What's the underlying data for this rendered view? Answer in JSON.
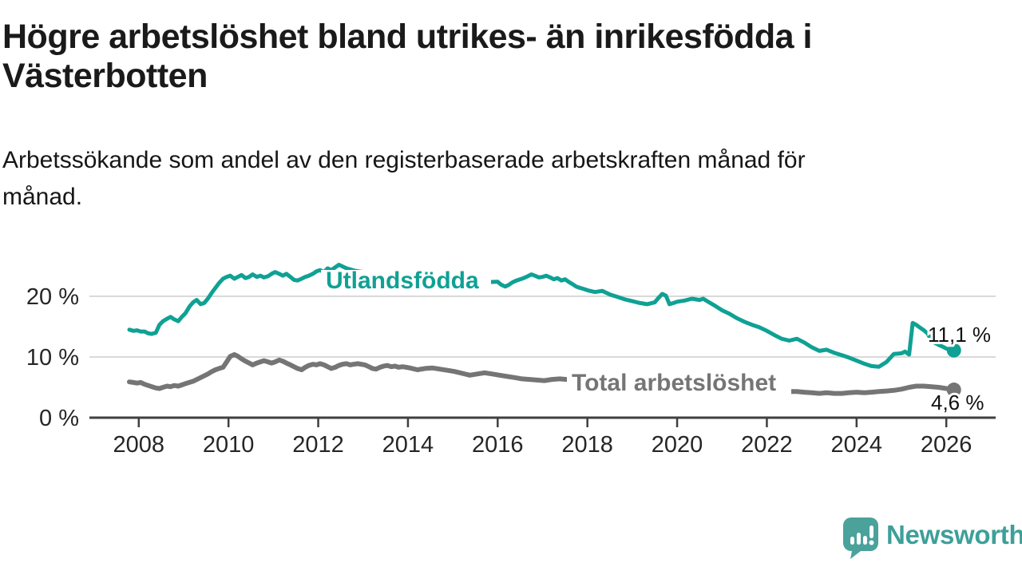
{
  "header": {
    "title_lines": [
      "Högre arbetslöshet bland utrikes- än inrikesfödda i",
      "Västerbotten"
    ],
    "subtitle_lines": [
      "Arbetssökande som andel av den registerbaserade arbetskraften månad för",
      "månad."
    ]
  },
  "footer": {
    "brand_name": "Newsworthy",
    "brand_color": "#3e9f99",
    "logo_icon": "bar-chart-speech-bubble-icon",
    "logo_icon_color": "#4aa29b"
  },
  "chart_data": {
    "type": "line",
    "title": "",
    "xlabel": "",
    "ylabel": "",
    "grid": "horizontal",
    "grid_color": "#d9d9d9",
    "axis_color": "#3f3f3f",
    "tick_text_color": "#262626",
    "annotation_text_color": "#111111",
    "xlim": [
      2006.9,
      2027.1
    ],
    "ylim": [
      0,
      26
    ],
    "x_ticks": [
      2008,
      2010,
      2012,
      2014,
      2016,
      2018,
      2020,
      2022,
      2024,
      2026
    ],
    "y_ticks": [
      {
        "value": 0,
        "label": "0 %"
      },
      {
        "value": 10,
        "label": "10 %"
      },
      {
        "value": 20,
        "label": "20 %"
      }
    ],
    "series": [
      {
        "name": "Utlandsfödda",
        "color": "#0fa194",
        "end_value_label": "11,1 %",
        "end_value": 11.1,
        "points": [
          [
            2007.79,
            14.5
          ],
          [
            2007.88,
            14.3
          ],
          [
            2007.96,
            14.4
          ],
          [
            2008.04,
            14.2
          ],
          [
            2008.13,
            14.2
          ],
          [
            2008.21,
            13.9
          ],
          [
            2008.29,
            13.8
          ],
          [
            2008.38,
            14.0
          ],
          [
            2008.46,
            15.3
          ],
          [
            2008.54,
            15.9
          ],
          [
            2008.63,
            16.3
          ],
          [
            2008.71,
            16.6
          ],
          [
            2008.79,
            16.2
          ],
          [
            2008.88,
            15.9
          ],
          [
            2008.96,
            16.6
          ],
          [
            2009.04,
            17.2
          ],
          [
            2009.13,
            18.3
          ],
          [
            2009.21,
            19.0
          ],
          [
            2009.29,
            19.4
          ],
          [
            2009.38,
            18.7
          ],
          [
            2009.46,
            18.9
          ],
          [
            2009.54,
            19.6
          ],
          [
            2009.63,
            20.6
          ],
          [
            2009.71,
            21.4
          ],
          [
            2009.79,
            22.2
          ],
          [
            2009.88,
            22.9
          ],
          [
            2009.96,
            23.2
          ],
          [
            2010.04,
            23.4
          ],
          [
            2010.13,
            22.9
          ],
          [
            2010.21,
            23.2
          ],
          [
            2010.29,
            23.5
          ],
          [
            2010.38,
            23.0
          ],
          [
            2010.46,
            23.2
          ],
          [
            2010.54,
            23.6
          ],
          [
            2010.63,
            23.2
          ],
          [
            2010.71,
            23.4
          ],
          [
            2010.79,
            23.1
          ],
          [
            2010.88,
            23.3
          ],
          [
            2010.96,
            23.7
          ],
          [
            2011.04,
            24.0
          ],
          [
            2011.13,
            23.7
          ],
          [
            2011.21,
            23.4
          ],
          [
            2011.29,
            23.7
          ],
          [
            2011.38,
            23.2
          ],
          [
            2011.46,
            22.7
          ],
          [
            2011.54,
            22.6
          ],
          [
            2011.63,
            22.9
          ],
          [
            2011.71,
            23.2
          ],
          [
            2011.79,
            23.4
          ],
          [
            2011.88,
            23.7
          ],
          [
            2011.96,
            24.1
          ],
          [
            2012.04,
            24.3
          ],
          [
            2012.13,
            24.0
          ],
          [
            2012.21,
            24.6
          ],
          [
            2012.29,
            24.3
          ],
          [
            2012.46,
            25.2
          ],
          [
            2012.63,
            24.6
          ],
          [
            2012.83,
            24.2
          ],
          [
            2013.0,
            24.0
          ],
          [
            2013.25,
            23.8
          ],
          [
            2013.5,
            23.6
          ],
          [
            2013.75,
            23.4
          ],
          [
            2014.0,
            23.2
          ],
          [
            2014.33,
            23.0
          ],
          [
            2014.67,
            22.8
          ],
          [
            2015.0,
            22.6
          ],
          [
            2015.33,
            22.4
          ],
          [
            2015.67,
            22.3
          ],
          [
            2016.0,
            22.4
          ],
          [
            2016.08,
            21.9
          ],
          [
            2016.17,
            21.6
          ],
          [
            2016.25,
            21.9
          ],
          [
            2016.33,
            22.3
          ],
          [
            2016.42,
            22.6
          ],
          [
            2016.5,
            22.8
          ],
          [
            2016.58,
            23.0
          ],
          [
            2016.67,
            23.3
          ],
          [
            2016.75,
            23.6
          ],
          [
            2016.83,
            23.4
          ],
          [
            2016.92,
            23.1
          ],
          [
            2017.0,
            23.2
          ],
          [
            2017.08,
            23.4
          ],
          [
            2017.17,
            23.1
          ],
          [
            2017.25,
            22.8
          ],
          [
            2017.33,
            23.0
          ],
          [
            2017.42,
            22.6
          ],
          [
            2017.5,
            22.8
          ],
          [
            2017.58,
            22.4
          ],
          [
            2017.67,
            22.0
          ],
          [
            2017.75,
            21.6
          ],
          [
            2017.83,
            21.4
          ],
          [
            2017.92,
            21.2
          ],
          [
            2018.0,
            21.0
          ],
          [
            2018.17,
            20.7
          ],
          [
            2018.33,
            20.9
          ],
          [
            2018.5,
            20.3
          ],
          [
            2018.67,
            19.9
          ],
          [
            2018.83,
            19.5
          ],
          [
            2019.0,
            19.2
          ],
          [
            2019.17,
            18.9
          ],
          [
            2019.33,
            18.7
          ],
          [
            2019.5,
            19.0
          ],
          [
            2019.58,
            19.7
          ],
          [
            2019.67,
            20.4
          ],
          [
            2019.75,
            20.1
          ],
          [
            2019.83,
            18.7
          ],
          [
            2019.92,
            18.9
          ],
          [
            2020.0,
            19.1
          ],
          [
            2020.17,
            19.3
          ],
          [
            2020.33,
            19.6
          ],
          [
            2020.5,
            19.4
          ],
          [
            2020.58,
            19.6
          ],
          [
            2020.67,
            19.2
          ],
          [
            2020.83,
            18.5
          ],
          [
            2021.0,
            17.7
          ],
          [
            2021.17,
            17.1
          ],
          [
            2021.33,
            16.4
          ],
          [
            2021.5,
            15.8
          ],
          [
            2021.67,
            15.3
          ],
          [
            2021.83,
            14.9
          ],
          [
            2022.0,
            14.3
          ],
          [
            2022.17,
            13.6
          ],
          [
            2022.33,
            13.0
          ],
          [
            2022.5,
            12.7
          ],
          [
            2022.67,
            13.0
          ],
          [
            2022.83,
            12.4
          ],
          [
            2023.0,
            11.6
          ],
          [
            2023.17,
            11.0
          ],
          [
            2023.33,
            11.2
          ],
          [
            2023.5,
            10.7
          ],
          [
            2023.67,
            10.3
          ],
          [
            2023.83,
            9.9
          ],
          [
            2024.0,
            9.4
          ],
          [
            2024.17,
            8.9
          ],
          [
            2024.33,
            8.5
          ],
          [
            2024.5,
            8.4
          ],
          [
            2024.67,
            9.2
          ],
          [
            2024.83,
            10.5
          ],
          [
            2025.0,
            10.6
          ],
          [
            2025.08,
            10.9
          ],
          [
            2025.17,
            10.4
          ],
          [
            2025.25,
            15.6
          ],
          [
            2025.33,
            15.3
          ],
          [
            2025.42,
            14.8
          ],
          [
            2025.5,
            14.4
          ],
          [
            2025.58,
            13.9
          ],
          [
            2025.67,
            12.7
          ],
          [
            2025.75,
            12.3
          ],
          [
            2025.83,
            12.0
          ],
          [
            2025.92,
            11.7
          ],
          [
            2026.0,
            11.4
          ],
          [
            2026.08,
            11.2
          ],
          [
            2026.17,
            11.1
          ]
        ]
      },
      {
        "name": "Total arbetslöshet",
        "color": "#757575",
        "end_value_label": "4,6 %",
        "end_value": 4.6,
        "points": [
          [
            2007.79,
            5.9
          ],
          [
            2007.88,
            5.8
          ],
          [
            2007.96,
            5.7
          ],
          [
            2008.04,
            5.8
          ],
          [
            2008.13,
            5.5
          ],
          [
            2008.21,
            5.3
          ],
          [
            2008.29,
            5.1
          ],
          [
            2008.38,
            4.9
          ],
          [
            2008.46,
            4.8
          ],
          [
            2008.54,
            5.0
          ],
          [
            2008.63,
            5.2
          ],
          [
            2008.71,
            5.1
          ],
          [
            2008.79,
            5.3
          ],
          [
            2008.88,
            5.2
          ],
          [
            2008.96,
            5.4
          ],
          [
            2009.04,
            5.6
          ],
          [
            2009.21,
            6.0
          ],
          [
            2009.38,
            6.6
          ],
          [
            2009.54,
            7.2
          ],
          [
            2009.63,
            7.6
          ],
          [
            2009.71,
            7.9
          ],
          [
            2009.79,
            8.1
          ],
          [
            2009.88,
            8.3
          ],
          [
            2009.96,
            9.2
          ],
          [
            2010.04,
            10.1
          ],
          [
            2010.13,
            10.4
          ],
          [
            2010.21,
            10.1
          ],
          [
            2010.29,
            9.7
          ],
          [
            2010.38,
            9.3
          ],
          [
            2010.46,
            9.0
          ],
          [
            2010.54,
            8.7
          ],
          [
            2010.63,
            9.0
          ],
          [
            2010.71,
            9.2
          ],
          [
            2010.79,
            9.4
          ],
          [
            2010.88,
            9.2
          ],
          [
            2010.96,
            9.0
          ],
          [
            2011.04,
            9.2
          ],
          [
            2011.13,
            9.5
          ],
          [
            2011.21,
            9.3
          ],
          [
            2011.29,
            9.0
          ],
          [
            2011.38,
            8.7
          ],
          [
            2011.46,
            8.4
          ],
          [
            2011.54,
            8.1
          ],
          [
            2011.63,
            7.9
          ],
          [
            2011.71,
            8.3
          ],
          [
            2011.79,
            8.6
          ],
          [
            2011.88,
            8.8
          ],
          [
            2011.96,
            8.7
          ],
          [
            2012.04,
            8.9
          ],
          [
            2012.13,
            8.7
          ],
          [
            2012.21,
            8.4
          ],
          [
            2012.29,
            8.1
          ],
          [
            2012.38,
            8.3
          ],
          [
            2012.46,
            8.6
          ],
          [
            2012.54,
            8.8
          ],
          [
            2012.63,
            8.9
          ],
          [
            2012.71,
            8.7
          ],
          [
            2012.79,
            8.8
          ],
          [
            2012.88,
            8.9
          ],
          [
            2012.96,
            8.8
          ],
          [
            2013.04,
            8.7
          ],
          [
            2013.13,
            8.4
          ],
          [
            2013.21,
            8.1
          ],
          [
            2013.29,
            8.0
          ],
          [
            2013.38,
            8.3
          ],
          [
            2013.46,
            8.5
          ],
          [
            2013.54,
            8.6
          ],
          [
            2013.63,
            8.4
          ],
          [
            2013.71,
            8.5
          ],
          [
            2013.79,
            8.3
          ],
          [
            2013.88,
            8.4
          ],
          [
            2013.96,
            8.3
          ],
          [
            2014.04,
            8.2
          ],
          [
            2014.21,
            7.9
          ],
          [
            2014.38,
            8.1
          ],
          [
            2014.54,
            8.2
          ],
          [
            2014.71,
            8.0
          ],
          [
            2014.88,
            7.8
          ],
          [
            2015.04,
            7.6
          ],
          [
            2015.21,
            7.3
          ],
          [
            2015.38,
            7.0
          ],
          [
            2015.54,
            7.2
          ],
          [
            2015.71,
            7.4
          ],
          [
            2015.88,
            7.2
          ],
          [
            2016.04,
            7.0
          ],
          [
            2016.21,
            6.8
          ],
          [
            2016.38,
            6.6
          ],
          [
            2016.54,
            6.4
          ],
          [
            2016.71,
            6.3
          ],
          [
            2016.88,
            6.2
          ],
          [
            2017.04,
            6.1
          ],
          [
            2017.21,
            6.3
          ],
          [
            2017.38,
            6.4
          ],
          [
            2017.54,
            6.3
          ],
          [
            2018.0,
            5.9
          ],
          [
            2018.5,
            5.7
          ],
          [
            2019.0,
            5.5
          ],
          [
            2019.5,
            5.4
          ],
          [
            2020.0,
            5.8
          ],
          [
            2020.33,
            6.3
          ],
          [
            2020.67,
            5.9
          ],
          [
            2021.0,
            5.5
          ],
          [
            2021.5,
            5.0
          ],
          [
            2022.0,
            4.6
          ],
          [
            2022.33,
            4.4
          ],
          [
            2022.5,
            4.3
          ],
          [
            2022.67,
            4.3
          ],
          [
            2022.83,
            4.2
          ],
          [
            2023.0,
            4.1
          ],
          [
            2023.17,
            4.0
          ],
          [
            2023.33,
            4.1
          ],
          [
            2023.5,
            4.0
          ],
          [
            2023.67,
            4.0
          ],
          [
            2023.83,
            4.1
          ],
          [
            2024.0,
            4.2
          ],
          [
            2024.17,
            4.1
          ],
          [
            2024.33,
            4.2
          ],
          [
            2024.5,
            4.3
          ],
          [
            2024.67,
            4.4
          ],
          [
            2024.83,
            4.5
          ],
          [
            2025.0,
            4.7
          ],
          [
            2025.17,
            5.0
          ],
          [
            2025.33,
            5.2
          ],
          [
            2025.5,
            5.2
          ],
          [
            2025.67,
            5.1
          ],
          [
            2025.83,
            5.0
          ],
          [
            2026.0,
            4.8
          ],
          [
            2026.17,
            4.6
          ]
        ]
      }
    ]
  }
}
